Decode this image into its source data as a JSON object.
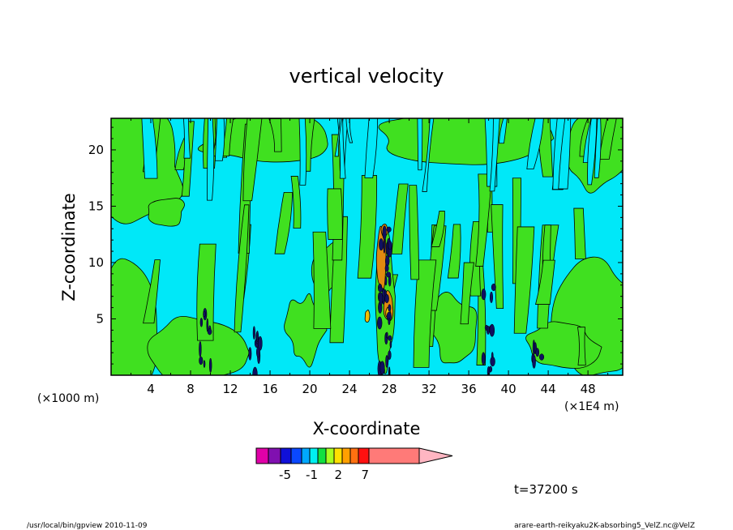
{
  "chart_data": {
    "type": "heatmap",
    "title": "vertical velocity",
    "xlabel": "X-coordinate",
    "ylabel": "Z-coordinate",
    "x_unit_left": "(×1000 m)",
    "x_unit_right": "(×1E4 m)",
    "xlim": [
      0,
      51.5
    ],
    "ylim": [
      0,
      22.8
    ],
    "x_ticks": [
      4,
      8,
      12,
      16,
      20,
      24,
      28,
      32,
      36,
      40,
      44,
      48
    ],
    "y_ticks": [
      5,
      10,
      15,
      20
    ],
    "time_label": "t=37200 s",
    "colorbar": {
      "colors": [
        "#e000a8",
        "#8010b0",
        "#1010d8",
        "#0a48ff",
        "#00a8ff",
        "#00f0f0",
        "#10e040",
        "#a8ff20",
        "#ffe000",
        "#ffa000",
        "#ff7010",
        "#ff1010",
        "#ff7a78",
        "#ffb6c2"
      ],
      "tick_labels": [
        {
          "label": "-5",
          "after_segment": 2
        },
        {
          "label": "-1",
          "after_segment": 5
        },
        {
          "label": "2",
          "after_segment": 8
        },
        {
          "label": "7",
          "after_segment": 11
        }
      ]
    },
    "field_colors": {
      "background": "#00e8f8",
      "weak_updraft": "#40e020",
      "strong_updraft": "#e08a10",
      "peak_updraft": "#f0c000",
      "downdraft": "#101060",
      "contour": "#000000",
      "frame": "#000000"
    },
    "features": [
      {
        "type": "strong_updraft",
        "x": 27.2,
        "z": 10.5
      },
      {
        "type": "peak_updraft",
        "x": 27.9,
        "z": 5.5
      },
      {
        "type": "downdraft_column",
        "x": 27.6,
        "z": 6
      },
      {
        "type": "downdraft_column",
        "x": 9.5,
        "z": 2.5
      },
      {
        "type": "downdraft_column",
        "x": 14.5,
        "z": 2
      }
    ]
  },
  "footer": {
    "left": "/usr/local/bin/gpview   2010-11-09",
    "right": "arare-earth-reikyaku2K-absorbing5_VelZ.nc@VelZ"
  }
}
